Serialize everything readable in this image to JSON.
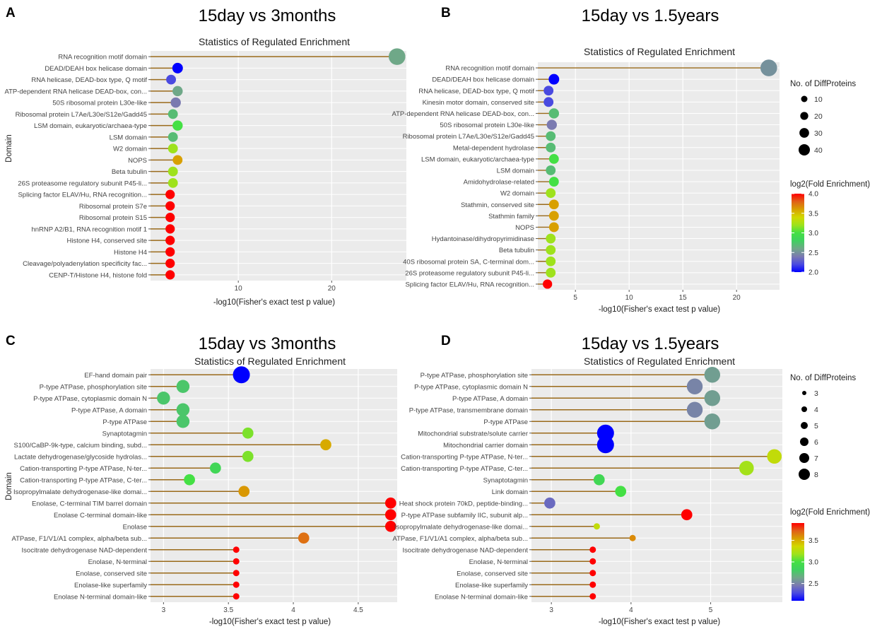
{
  "figure": {
    "panel_letters": [
      "A",
      "B",
      "C",
      "D"
    ]
  },
  "colorbar_colors": [
    "#0000ff",
    "#4a4ae0",
    "#7a7ab0",
    "#6fa888",
    "#3fd060",
    "#44e044",
    "#9ee21c",
    "#d2d800",
    "#d8a000",
    "#e06018",
    "#ff0000"
  ],
  "chart_data": [
    {
      "type": "lollipop",
      "panel": "A",
      "heading": "15day vs 3months",
      "title": "Statistics of Regulated Enrichment",
      "xlabel": "-log10(Fisher's exact test p value)",
      "ylabel": "Domain",
      "xlim": [
        0.6,
        28
      ],
      "xticks": [
        10,
        20
      ],
      "size_range": [
        6,
        44
      ],
      "color_range": [
        2.0,
        4.0
      ],
      "categories": [
        "RNA recognition motif domain",
        "DEAD/DEAH box helicase domain",
        "RNA helicase, DEAD-box type, Q motif",
        "ATP-dependent RNA helicase DEAD-box, con...",
        "50S ribosomal protein L30e-like",
        "Ribosomal protein L7Ae/L30e/S12e/Gadd45",
        "LSM domain, eukaryotic/archaea-type",
        "LSM domain",
        "W2 domain",
        "NOPS",
        "Beta tubulin",
        "26S proteasome regulatory subunit P45-li...",
        "Splicing factor ELAV/Hu, RNA recognition...",
        "Ribosomal protein S7e",
        "Ribosomal protein S15",
        "hnRNP A2/B1, RNA recognition motif 1",
        "Histone H4, conserved site",
        "Histone H4",
        "Cleavage/polyadenylation specificity fac...",
        "CENP-T/Histone H4, histone fold"
      ],
      "values": [
        27.0,
        3.5,
        2.8,
        3.5,
        3.3,
        3.0,
        3.5,
        3.0,
        3.0,
        3.5,
        3.0,
        3.0,
        2.7,
        2.7,
        2.7,
        2.7,
        2.7,
        2.7,
        2.7,
        2.7
      ],
      "sizes": [
        42,
        12,
        10,
        11,
        11,
        10,
        11,
        10,
        10,
        10,
        10,
        10,
        9,
        9,
        9,
        9,
        9,
        9,
        9,
        9
      ],
      "fold": [
        2.6,
        2.0,
        2.2,
        2.6,
        2.4,
        2.7,
        3.0,
        2.7,
        3.2,
        3.6,
        3.2,
        3.2,
        4.0,
        4.0,
        4.0,
        4.0,
        4.0,
        4.0,
        4.0,
        4.0
      ]
    },
    {
      "type": "lollipop",
      "panel": "B",
      "heading": "15day vs 1.5years",
      "title": "Statistics of Regulated Enrichment",
      "xlabel": "-log10(Fisher's exact test p value)",
      "ylabel": "",
      "xlim": [
        1.5,
        24
      ],
      "xticks": [
        5,
        10,
        15,
        20
      ],
      "size_range": [
        6,
        44
      ],
      "color_range": [
        2.0,
        4.0
      ],
      "categories": [
        "RNA recognition motif domain",
        "DEAD/DEAH box helicase domain",
        "RNA helicase, DEAD-box type, Q motif",
        "Kinesin motor domain, conserved site",
        "ATP-dependent RNA helicase DEAD-box, con...",
        "50S ribosomal protein L30e-like",
        "Ribosomal protein L7Ae/L30e/S12e/Gadd45",
        "Metal-dependent hydrolase",
        "LSM domain, eukaryotic/archaea-type",
        "LSM domain",
        "Amidohydrolase-related",
        "W2 domain",
        "Stathmin, conserved site",
        "Stathmin family",
        "NOPS",
        "Hydantoinase/dihydropyrimidinase",
        "Beta tubulin",
        "40S ribosomal protein SA, C-terminal dom...",
        "26S proteasome regulatory subunit P45-li...",
        "Splicing factor ELAV/Hu, RNA recognition..."
      ],
      "values": [
        23.0,
        3.0,
        2.5,
        2.5,
        3.0,
        2.8,
        2.7,
        2.7,
        3.0,
        2.7,
        3.0,
        2.7,
        3.0,
        3.0,
        3.0,
        2.7,
        2.7,
        2.7,
        2.7,
        2.4
      ],
      "sizes": [
        42,
        12,
        10,
        10,
        11,
        11,
        10,
        10,
        10,
        10,
        10,
        10,
        10,
        10,
        10,
        10,
        10,
        10,
        10,
        9
      ],
      "fold": [
        2.5,
        2.0,
        2.2,
        2.2,
        2.7,
        2.4,
        2.7,
        2.7,
        3.0,
        2.7,
        3.0,
        3.2,
        3.6,
        3.6,
        3.6,
        3.2,
        3.2,
        3.2,
        3.2,
        4.0
      ]
    },
    {
      "type": "lollipop",
      "panel": "C",
      "heading": "15day vs 3months",
      "title": "Statistics of Regulated Enrichment",
      "xlabel": "-log10(Fisher's exact test p value)",
      "ylabel": "Domain",
      "xlim": [
        2.9,
        4.8
      ],
      "xticks": [
        3.0,
        3.5,
        4.0,
        4.5
      ],
      "size_range": [
        3,
        8
      ],
      "color_range": [
        2.2,
        3.8
      ],
      "categories": [
        "EF-hand domain pair",
        "P-type ATPase, phosphorylation site",
        "P-type ATPase, cytoplasmic domain N",
        "P-type ATPase, A  domain",
        "P-type ATPase",
        "Synaptotagmin",
        "S100/CaBP-9k-type, calcium binding, subd...",
        "Lactate dehydrogenase/glycoside hydrolas...",
        "Cation-transporting P-type ATPase, N-ter...",
        "Cation-transporting P-type ATPase, C-ter...",
        "Isopropylmalate dehydrogenase-like domai...",
        "Enolase, C-terminal TIM barrel domain",
        "Enolase C-terminal domain-like",
        "Enolase",
        "ATPase, F1/V1/A1 complex, alpha/beta sub...",
        "Isocitrate dehydrogenase NAD-dependent",
        "Enolase, N-terminal",
        "Enolase, conserved site",
        "Enolase-like superfamily",
        "Enolase N-terminal domain-like"
      ],
      "values": [
        3.6,
        3.15,
        3.0,
        3.15,
        3.15,
        3.65,
        4.25,
        3.65,
        3.4,
        3.2,
        3.62,
        4.75,
        4.75,
        4.75,
        4.08,
        3.56,
        3.56,
        3.56,
        3.56,
        3.56
      ],
      "sizes": [
        8,
        5,
        5,
        5,
        5,
        4,
        4,
        4,
        4,
        4,
        4,
        4,
        4,
        4,
        4,
        3,
        3,
        3,
        3,
        3
      ],
      "fold": [
        2.2,
        2.8,
        2.8,
        2.8,
        2.8,
        3.1,
        3.45,
        3.1,
        2.9,
        3.0,
        3.5,
        3.8,
        3.8,
        3.8,
        3.6,
        3.8,
        3.8,
        3.8,
        3.8,
        3.8
      ]
    },
    {
      "type": "lollipop",
      "panel": "D",
      "heading": "15day vs 1.5years",
      "title": "Statistics of Regulated Enrichment",
      "xlabel": "-log10(Fisher's exact test p value)",
      "ylabel": "",
      "xlim": [
        2.75,
        5.9
      ],
      "xticks": [
        3,
        4,
        5
      ],
      "size_range": [
        3,
        8
      ],
      "color_range": [
        2.1,
        3.9
      ],
      "categories": [
        "P-type ATPase, phosphorylation site",
        "P-type ATPase, cytoplasmic domain N",
        "P-type ATPase, A  domain",
        "P-type ATPase,  transmembrane domain",
        "P-type ATPase",
        "Mitochondrial substrate/solute carrier",
        "Mitochondrial carrier domain",
        "Cation-transporting P-type ATPase, N-ter...",
        "Cation-transporting P-type ATPase, C-ter...",
        "Synaptotagmin",
        "Link domain",
        "Heat shock protein 70kD, peptide-binding...",
        "P-type ATPase subfamily IIC, subunit alp...",
        "Isopropylmalate dehydrogenase-like domai...",
        "ATPase, F1/V1/A1 complex, alpha/beta sub...",
        "Isocitrate dehydrogenase NAD-dependent",
        "Enolase, N-terminal",
        "Enolase, conserved site",
        "Enolase-like superfamily",
        "Enolase N-terminal domain-like"
      ],
      "values": [
        5.02,
        4.8,
        5.02,
        4.8,
        5.02,
        3.68,
        3.68,
        5.8,
        5.45,
        3.6,
        3.87,
        2.98,
        4.7,
        3.57,
        4.02,
        3.52,
        3.52,
        3.52,
        3.52,
        3.52
      ],
      "sizes": [
        7,
        7,
        7,
        7,
        7,
        8,
        8,
        6,
        6,
        4,
        4,
        4,
        4,
        3,
        3,
        3,
        3,
        3,
        3,
        3
      ],
      "fold": [
        2.6,
        2.5,
        2.6,
        2.5,
        2.6,
        2.1,
        2.1,
        3.3,
        3.2,
        2.9,
        3.0,
        2.4,
        3.9,
        3.3,
        3.6,
        3.9,
        3.9,
        3.9,
        3.9,
        3.9
      ]
    }
  ],
  "legends": {
    "B": {
      "size_title": "No. of DiffProteins",
      "size_labels": [
        "10",
        "20",
        "30",
        "40"
      ],
      "size_values": [
        10,
        20,
        30,
        40
      ],
      "color_title": "log2(Fold Enrichment)",
      "color_labels": [
        "4.0",
        "3.5",
        "3.0",
        "2.5",
        "2.0"
      ],
      "color_values": [
        4.0,
        3.5,
        3.0,
        2.5,
        2.0
      ]
    },
    "D": {
      "size_title": "No. of DiffProteins",
      "size_labels": [
        "3",
        "4",
        "5",
        "6",
        "7",
        "8"
      ],
      "size_values": [
        3,
        4,
        5,
        6,
        7,
        8
      ],
      "color_title": "log2(Fold Enrichment)",
      "color_labels": [
        "3.5",
        "3.0",
        "2.5"
      ],
      "color_values": [
        3.5,
        3.0,
        2.5
      ]
    }
  }
}
